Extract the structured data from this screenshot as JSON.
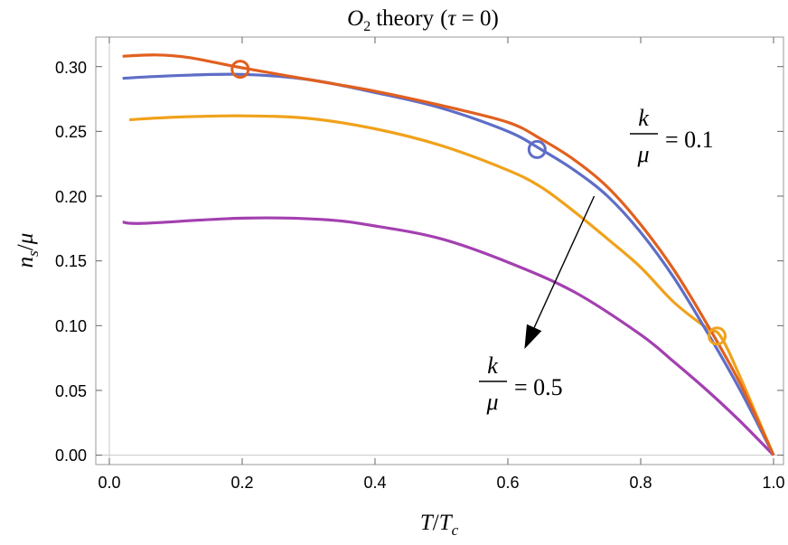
{
  "chart_data": {
    "type": "line",
    "title": {
      "symbol": "O",
      "subscript": "2",
      "word": "theory",
      "condition_open": "(",
      "condition_var": "τ",
      "condition_rest": " = 0)"
    },
    "xlabel": {
      "num": "T",
      "slash": "/",
      "den": "T",
      "den_sub": "c"
    },
    "ylabel": {
      "num": "n",
      "num_sub": "s",
      "slash": "/",
      "den": "μ"
    },
    "xlim": [
      0,
      1.02
    ],
    "ylim": [
      -0.005,
      0.325
    ],
    "x_ticks": [
      "0.0",
      "0.2",
      "0.4",
      "0.6",
      "0.8",
      "1.0"
    ],
    "x_tick_values": [
      0,
      0.2,
      0.4,
      0.6,
      0.8,
      1.0
    ],
    "y_ticks": [
      "0.00",
      "0.05",
      "0.10",
      "0.15",
      "0.20",
      "0.25",
      "0.30"
    ],
    "y_tick_values": [
      0,
      0.05,
      0.1,
      0.15,
      0.2,
      0.25,
      0.3
    ],
    "series": [
      {
        "color": "#e1601f",
        "points": [
          [
            0.02,
            0.308
          ],
          [
            0.07,
            0.309
          ],
          [
            0.12,
            0.307
          ],
          [
            0.2,
            0.299
          ],
          [
            0.3,
            0.29
          ],
          [
            0.4,
            0.281
          ],
          [
            0.5,
            0.27
          ],
          [
            0.6,
            0.257
          ],
          [
            0.65,
            0.244
          ],
          [
            0.7,
            0.228
          ],
          [
            0.75,
            0.207
          ],
          [
            0.8,
            0.178
          ],
          [
            0.85,
            0.143
          ],
          [
            0.9,
            0.101
          ],
          [
            0.95,
            0.055
          ],
          [
            1.0,
            0.0
          ]
        ],
        "marker": [
          0.197,
          0.298
        ]
      },
      {
        "color": "#5e6ec6",
        "points": [
          [
            0.02,
            0.291
          ],
          [
            0.1,
            0.293
          ],
          [
            0.2,
            0.294
          ],
          [
            0.3,
            0.29
          ],
          [
            0.4,
            0.28
          ],
          [
            0.5,
            0.268
          ],
          [
            0.6,
            0.25
          ],
          [
            0.65,
            0.236
          ],
          [
            0.7,
            0.22
          ],
          [
            0.75,
            0.2
          ],
          [
            0.8,
            0.172
          ],
          [
            0.85,
            0.137
          ],
          [
            0.9,
            0.095
          ],
          [
            0.95,
            0.05
          ],
          [
            1.0,
            0.0
          ]
        ],
        "marker": [
          0.644,
          0.236
        ]
      },
      {
        "color": "#f0a21b",
        "points": [
          [
            0.03,
            0.259
          ],
          [
            0.1,
            0.261
          ],
          [
            0.2,
            0.262
          ],
          [
            0.3,
            0.26
          ],
          [
            0.4,
            0.252
          ],
          [
            0.5,
            0.239
          ],
          [
            0.6,
            0.22
          ],
          [
            0.65,
            0.207
          ],
          [
            0.7,
            0.188
          ],
          [
            0.75,
            0.167
          ],
          [
            0.8,
            0.145
          ],
          [
            0.85,
            0.118
          ],
          [
            0.9,
            0.098
          ],
          [
            0.92,
            0.092
          ],
          [
            0.95,
            0.06
          ],
          [
            1.0,
            0.0
          ]
        ],
        "marker": [
          0.915,
          0.092
        ]
      },
      {
        "color": "#a340b0",
        "points": [
          [
            0.02,
            0.18
          ],
          [
            0.05,
            0.179
          ],
          [
            0.2,
            0.183
          ],
          [
            0.32,
            0.182
          ],
          [
            0.4,
            0.177
          ],
          [
            0.5,
            0.167
          ],
          [
            0.6,
            0.149
          ],
          [
            0.7,
            0.126
          ],
          [
            0.8,
            0.093
          ],
          [
            0.85,
            0.072
          ],
          [
            0.9,
            0.05
          ],
          [
            0.95,
            0.026
          ],
          [
            1.0,
            0.0
          ]
        ],
        "marker": null
      }
    ],
    "annotations": [
      {
        "num": "k",
        "den": "μ",
        "rest": "= 0.1"
      },
      {
        "num": "k",
        "den": "μ",
        "rest": "= 0.5"
      }
    ],
    "arrow": {
      "from": [
        0.73,
        0.2
      ],
      "to": [
        0.625,
        0.082
      ]
    },
    "grid": false,
    "legend": "none"
  }
}
